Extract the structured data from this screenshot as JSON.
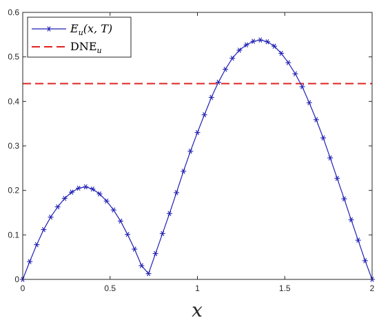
{
  "chart_data": {
    "type": "line",
    "title": "",
    "xlabel": "x",
    "ylabel": "",
    "xlim": [
      0,
      2
    ],
    "ylim": [
      0,
      0.6
    ],
    "xticks": [
      0,
      0.5,
      1,
      1.5,
      2
    ],
    "xtick_labels": [
      "0",
      "0.5",
      "1",
      "1.5",
      "2"
    ],
    "yticks": [
      0,
      0.1,
      0.2,
      0.3,
      0.4,
      0.5,
      0.6
    ],
    "ytick_labels": [
      "0",
      "0.1",
      "0.2",
      "0.3",
      "0.4",
      "0.5",
      "0.6"
    ],
    "grid": false,
    "legend_position": "top-left",
    "colors": {
      "series": "#1f1fb4",
      "reference": "#e02020",
      "axis": "#262626"
    },
    "series": [
      {
        "name": "E_u(x,T)",
        "style": "solid-line-asterisk-markers",
        "x": [
          0,
          0.04,
          0.08,
          0.12,
          0.16,
          0.2,
          0.24,
          0.28,
          0.32,
          0.36,
          0.4,
          0.44,
          0.48,
          0.52,
          0.56,
          0.6,
          0.64,
          0.68,
          0.72,
          0.76,
          0.8,
          0.84,
          0.88,
          0.92,
          0.96,
          1.0,
          1.04,
          1.08,
          1.12,
          1.16,
          1.2,
          1.24,
          1.28,
          1.32,
          1.36,
          1.4,
          1.44,
          1.48,
          1.52,
          1.56,
          1.6,
          1.64,
          1.68,
          1.72,
          1.76,
          1.8,
          1.84,
          1.88,
          1.92,
          1.96,
          2.0
        ],
        "y": [
          0,
          0.04,
          0.078,
          0.112,
          0.14,
          0.163,
          0.182,
          0.196,
          0.205,
          0.208,
          0.203,
          0.192,
          0.176,
          0.156,
          0.131,
          0.101,
          0.068,
          0.031,
          0.013,
          0.058,
          0.103,
          0.148,
          0.195,
          0.243,
          0.288,
          0.33,
          0.37,
          0.409,
          0.443,
          0.472,
          0.497,
          0.515,
          0.527,
          0.535,
          0.538,
          0.534,
          0.524,
          0.508,
          0.487,
          0.462,
          0.433,
          0.397,
          0.359,
          0.318,
          0.273,
          0.227,
          0.181,
          0.134,
          0.088,
          0.042,
          0
        ]
      },
      {
        "name": "DNE_u",
        "style": "dashed-line",
        "x": [
          0,
          2
        ],
        "y": [
          0.44,
          0.44
        ]
      }
    ]
  },
  "legend": {
    "series_label_main": "E",
    "series_label_sub": "u",
    "series_label_args": "(x, T)",
    "reference_label_main": "DNE",
    "reference_label_sub": "u"
  }
}
